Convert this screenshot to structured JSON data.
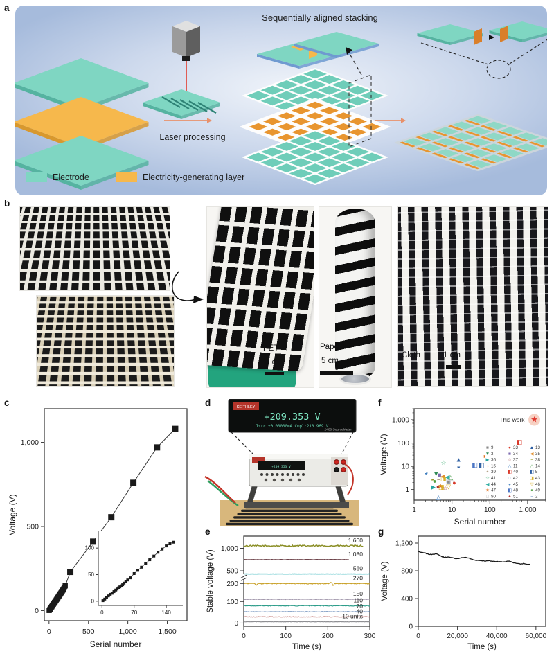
{
  "panels": {
    "a": "a",
    "b": "b",
    "c": "c",
    "d": "d",
    "e": "e",
    "f": "f",
    "g": "g"
  },
  "panel_a": {
    "stacking_title": "Sequentially aligned stacking",
    "process_label": "Laser processing",
    "legend": [
      {
        "label": "Electrode",
        "color": "#7fd6c2"
      },
      {
        "label": "Electricity-generating layer",
        "color": "#f6b84c"
      }
    ]
  },
  "panel_b": {
    "photos": [
      {
        "label": "PET",
        "scale_bar": "1 cm"
      },
      {
        "label": "Paper",
        "scale_bar": "5 cm"
      },
      {
        "label": "Cloth",
        "scale_bar": "1 cm"
      }
    ]
  },
  "panel_d": {
    "brand": "KEITHLEY",
    "display_line1": "+209.353 V",
    "display_line2": "Isrc:+0.00000mA  Cmpl:210.969 V",
    "model": "2400 SourceMeter"
  },
  "chart_data": [
    {
      "id": "c",
      "type": "scatter",
      "xlabel": "Serial number",
      "ylabel": "Voltage (V)",
      "xlim": [
        -60,
        1750
      ],
      "ylim": [
        -60,
        1200
      ],
      "xticks": [
        {
          "v": 0,
          "label": "0"
        },
        {
          "v": 500,
          "label": "500"
        },
        {
          "v": 1000,
          "label": "1,000"
        },
        {
          "v": 1500,
          "label": "1,500"
        }
      ],
      "yticks": [
        {
          "v": 0,
          "label": "0"
        },
        {
          "v": 500,
          "label": "500"
        },
        {
          "v": 1000,
          "label": "1,000"
        }
      ],
      "marker": "square",
      "color": "#1a1a1a",
      "points": [
        [
          2,
          1
        ],
        [
          8,
          5
        ],
        [
          14,
          9
        ],
        [
          20,
          14
        ],
        [
          27,
          18
        ],
        [
          34,
          23
        ],
        [
          41,
          28
        ],
        [
          48,
          33
        ],
        [
          55,
          38
        ],
        [
          62,
          43
        ],
        [
          69,
          48
        ],
        [
          76,
          52
        ],
        [
          83,
          57
        ],
        [
          90,
          62
        ],
        [
          97,
          67
        ],
        [
          104,
          72
        ],
        [
          111,
          77
        ],
        [
          118,
          82
        ],
        [
          125,
          87
        ],
        [
          132,
          91
        ],
        [
          139,
          96
        ],
        [
          146,
          101
        ],
        [
          153,
          106
        ],
        [
          160,
          111
        ],
        [
          167,
          116
        ],
        [
          174,
          121
        ],
        [
          181,
          126
        ],
        [
          188,
          131
        ],
        [
          196,
          139
        ],
        [
          205,
          147
        ],
        [
          270,
          230
        ],
        [
          560,
          410
        ],
        [
          790,
          555
        ],
        [
          1070,
          760
        ],
        [
          1370,
          970
        ],
        [
          1600,
          1080
        ]
      ],
      "inset": {
        "xlim": [
          -8,
          170
        ],
        "ylim": [
          -8,
          125
        ],
        "xticks": [
          {
            "v": 0,
            "label": "0"
          },
          {
            "v": 70,
            "label": "70"
          },
          {
            "v": 140,
            "label": "140"
          }
        ],
        "yticks": [
          {
            "v": 0,
            "label": "0"
          },
          {
            "v": 50,
            "label": "50"
          },
          {
            "v": 100,
            "label": "100"
          }
        ],
        "points": [
          [
            2,
            1
          ],
          [
            6,
            4
          ],
          [
            10,
            7
          ],
          [
            14,
            10
          ],
          [
            18,
            13
          ],
          [
            22,
            15
          ],
          [
            26,
            18
          ],
          [
            30,
            21
          ],
          [
            33,
            23
          ],
          [
            36,
            25
          ],
          [
            39,
            27
          ],
          [
            42,
            29
          ],
          [
            45,
            31
          ],
          [
            48,
            34
          ],
          [
            52,
            37
          ],
          [
            56,
            40
          ],
          [
            62,
            44
          ],
          [
            70,
            52
          ],
          [
            78,
            58
          ],
          [
            86,
            64
          ],
          [
            95,
            71
          ],
          [
            104,
            78
          ],
          [
            113,
            85
          ],
          [
            122,
            92
          ],
          [
            131,
            98
          ],
          [
            140,
            104
          ],
          [
            148,
            108
          ],
          [
            155,
            111
          ]
        ]
      }
    },
    {
      "id": "e",
      "type": "line",
      "xlabel": "Time (s)",
      "ylabel": "Stable voltage (V)",
      "xlim": [
        0,
        300
      ],
      "axis_break": true,
      "xticks": [
        {
          "v": 0,
          "label": "0"
        },
        {
          "v": 100,
          "label": "100"
        },
        {
          "v": 200,
          "label": "200"
        },
        {
          "v": 300,
          "label": "300"
        }
      ],
      "yticks": [
        {
          "v": 0,
          "label": "0"
        },
        {
          "v": 100,
          "label": "100"
        },
        {
          "v": 200,
          "label": "200"
        },
        {
          "v": 500,
          "label": "500"
        },
        {
          "v": 1000,
          "label": "1,000"
        }
      ],
      "series": [
        {
          "label": "1,600",
          "voltage": 1055,
          "color": "#8b8f27",
          "noise": 16,
          "width": 1.5,
          "end": 285
        },
        {
          "label": "1,080",
          "voltage": 750,
          "color": "#57262e",
          "noise": 3,
          "width": 1.0,
          "end": 250
        },
        {
          "label": "560",
          "voltage": 425,
          "color": "#38b6bd",
          "noise": 2,
          "width": 1.4,
          "end": 300
        },
        {
          "label": "270",
          "voltage": 200,
          "color": "#c9a22b",
          "noise": 3,
          "width": 1.2,
          "end": 300,
          "spikes": [
            [
              30,
              -10
            ],
            [
              207,
              26
            ],
            [
              213,
              -12
            ]
          ]
        },
        {
          "label": "150",
          "voltage": 112,
          "color": "#a49aae",
          "noise": 1.5,
          "width": 1.2,
          "end": 300
        },
        {
          "label": "110",
          "voltage": 80,
          "color": "#2e9d8a",
          "noise": 1.5,
          "width": 1.2,
          "end": 300
        },
        {
          "label": "70",
          "voltage": 52,
          "color": "#4a74ab",
          "noise": 1.0,
          "width": 1.2,
          "end": 300
        },
        {
          "label": "40",
          "voltage": 29,
          "color": "#b2544e",
          "noise": 1.0,
          "width": 1.2,
          "end": 300
        },
        {
          "label": "10 units",
          "voltage": 6,
          "color": "#8f8f93",
          "noise": 0.8,
          "width": 1.2,
          "end": 300
        }
      ]
    },
    {
      "id": "f",
      "type": "scatter",
      "scale": "log-log",
      "xlabel": "Serial number",
      "ylabel": "Voltage (V)",
      "xlim": [
        1,
        3000
      ],
      "ylim": [
        0.35,
        3000
      ],
      "xticks": [
        {
          "v": 1,
          "label": "1"
        },
        {
          "v": 10,
          "label": "10"
        },
        {
          "v": 100,
          "label": "100"
        },
        {
          "v": 1000,
          "label": "1,000"
        }
      ],
      "yticks": [
        {
          "v": 1,
          "label": "1"
        },
        {
          "v": 10,
          "label": "10"
        },
        {
          "v": 100,
          "label": "100"
        },
        {
          "v": 1000,
          "label": "1,000"
        }
      ],
      "highlight": {
        "label": "This work",
        "x": 1500,
        "y": 1000,
        "glyph": "★",
        "color": "#e0372e",
        "halo": "#f7d2c4"
      },
      "points": [
        {
          "x": 2.1,
          "y": 5.2,
          "g": "◕",
          "c": "#3d7dbe"
        },
        {
          "x": 3.8,
          "y": 4.7,
          "g": "▼",
          "c": "#2f8b57"
        },
        {
          "x": 4.7,
          "y": 4.2,
          "g": "■",
          "c": "#7d6bb0"
        },
        {
          "x": 5.7,
          "y": 3.7,
          "g": "◀",
          "c": "#e2902f"
        },
        {
          "x": 7.6,
          "y": 3.4,
          "g": "◀",
          "c": "#35b0a5"
        },
        {
          "x": 9.2,
          "y": 3.3,
          "g": "△",
          "c": "#59a35a"
        },
        {
          "x": 3.1,
          "y": 2.5,
          "g": "◓",
          "c": "#9a9a2e"
        },
        {
          "x": 3.5,
          "y": 2.3,
          "g": "●",
          "c": "#4f9e3f"
        },
        {
          "x": 4.4,
          "y": 2.6,
          "g": "◓",
          "c": "#b4a289"
        },
        {
          "x": 5.9,
          "y": 2.9,
          "g": "◨",
          "c": "#d8b02a"
        },
        {
          "x": 8.3,
          "y": 2.15,
          "g": "■",
          "c": "#8a8a8a"
        },
        {
          "x": 8.0,
          "y": 2.3,
          "g": "□",
          "c": "#9fb8d6"
        },
        {
          "x": 9.6,
          "y": 2.05,
          "g": "□",
          "c": "#a9a9a9"
        },
        {
          "x": 11.5,
          "y": 1.95,
          "g": "●",
          "c": "#d93a2b"
        },
        {
          "x": 3.2,
          "y": 1.25,
          "g": "▶",
          "c": "#27a5a0"
        },
        {
          "x": 4.3,
          "y": 1.3,
          "g": "●",
          "c": "#b03030"
        },
        {
          "x": 5.0,
          "y": 1.4,
          "g": "★",
          "c": "#e2711d"
        },
        {
          "x": 5.2,
          "y": 1.25,
          "g": "◨",
          "c": "#d8b02a"
        },
        {
          "x": 6.6,
          "y": 1.15,
          "g": "☆",
          "c": "#a04a4a"
        },
        {
          "x": 8.1,
          "y": 1.3,
          "g": "▽",
          "c": "#d8b02a"
        },
        {
          "x": 4.4,
          "y": 0.45,
          "g": "△",
          "c": "#3a7bbf"
        },
        {
          "x": 6.0,
          "y": 14,
          "g": "☆",
          "c": "#3fae74"
        },
        {
          "x": 15,
          "y": 19,
          "g": "▲",
          "c": "#2e5fa3"
        },
        {
          "x": 15,
          "y": 10,
          "g": "◒",
          "c": "#2e5fa3"
        },
        {
          "x": 40,
          "y": 11.5,
          "g": "◧",
          "c": "#4a74c4"
        },
        {
          "x": 60,
          "y": 11,
          "g": "◧",
          "c": "#2e5fa3"
        },
        {
          "x": 70,
          "y": 27,
          "g": "◑",
          "c": "#e2711d"
        },
        {
          "x": 600,
          "y": 110,
          "g": "◧",
          "c": "#d93a2b"
        }
      ],
      "legend": {
        "columns": 3,
        "entries": [
          {
            "ref": "9",
            "glyph": "■",
            "color": "#8a8a8a"
          },
          {
            "ref": "33",
            "glyph": "●",
            "color": "#d93a2b"
          },
          {
            "ref": "13",
            "glyph": "▲",
            "color": "#2e5fa3"
          },
          {
            "ref": "3",
            "glyph": "▼",
            "color": "#2f8b57"
          },
          {
            "ref": "34",
            "glyph": "■",
            "color": "#7d6bb0"
          },
          {
            "ref": "35",
            "glyph": "◀",
            "color": "#e2902f"
          },
          {
            "ref": "36",
            "glyph": "▶",
            "color": "#27a5a0"
          },
          {
            "ref": "37",
            "glyph": "☆",
            "color": "#a04a4a"
          },
          {
            "ref": "38",
            "glyph": "◓",
            "color": "#9a9a2e"
          },
          {
            "ref": "15",
            "glyph": "◑",
            "color": "#e2711d"
          },
          {
            "ref": "11",
            "glyph": "△",
            "color": "#3a7bbf"
          },
          {
            "ref": "14",
            "glyph": "△",
            "color": "#59a35a"
          },
          {
            "ref": "39",
            "glyph": "◓",
            "color": "#b4a289"
          },
          {
            "ref": "40",
            "glyph": "◧",
            "color": "#d93a2b"
          },
          {
            "ref": "5",
            "glyph": "◧",
            "color": "#2e5fa3"
          },
          {
            "ref": "41",
            "glyph": "☆",
            "color": "#3fae74"
          },
          {
            "ref": "42",
            "glyph": "□",
            "color": "#9fb8d6"
          },
          {
            "ref": "43",
            "glyph": "◨",
            "color": "#d8b02a"
          },
          {
            "ref": "44",
            "glyph": "◀",
            "color": "#35b0a5"
          },
          {
            "ref": "45",
            "glyph": "◕",
            "color": "#3d7dbe"
          },
          {
            "ref": "46",
            "glyph": "▽",
            "color": "#d8b02a"
          },
          {
            "ref": "47",
            "glyph": "★",
            "color": "#e2711d"
          },
          {
            "ref": "48",
            "glyph": "◧",
            "color": "#4a74c4"
          },
          {
            "ref": "49",
            "glyph": "●",
            "color": "#4f9e3f"
          },
          {
            "ref": "50",
            "glyph": "□",
            "color": "#a9a9a9"
          },
          {
            "ref": "51",
            "glyph": "●",
            "color": "#b03030"
          },
          {
            "ref": "2",
            "glyph": "◒",
            "color": "#2e5fa3"
          }
        ]
      }
    },
    {
      "id": "g",
      "type": "line",
      "xlabel": "Time (s)",
      "ylabel": "Voltage (V)",
      "xlim": [
        0,
        65000
      ],
      "ylim": [
        0,
        1300
      ],
      "xticks": [
        {
          "v": 0,
          "label": "0"
        },
        {
          "v": 20000,
          "label": "20,000"
        },
        {
          "v": 40000,
          "label": "40,000"
        },
        {
          "v": 60000,
          "label": "60,000"
        }
      ],
      "yticks": [
        {
          "v": 0,
          "label": "0"
        },
        {
          "v": 400,
          "label": "400"
        },
        {
          "v": 800,
          "label": "800"
        },
        {
          "v": 1200,
          "label": "1,200"
        }
      ],
      "color": "#161616",
      "points": [
        [
          0,
          1080
        ],
        [
          1500,
          1065
        ],
        [
          3000,
          1060
        ],
        [
          4500,
          1045
        ],
        [
          6000,
          1035
        ],
        [
          7500,
          1040
        ],
        [
          9000,
          1045
        ],
        [
          10500,
          1030
        ],
        [
          12000,
          1005
        ],
        [
          13500,
          995
        ],
        [
          15000,
          1000
        ],
        [
          16500,
          990
        ],
        [
          18000,
          985
        ],
        [
          19500,
          975
        ],
        [
          21000,
          980
        ],
        [
          22500,
          990
        ],
        [
          24000,
          995
        ],
        [
          25500,
          985
        ],
        [
          27000,
          970
        ],
        [
          28500,
          955
        ],
        [
          30000,
          950
        ],
        [
          31500,
          948
        ],
        [
          33000,
          945
        ],
        [
          34500,
          940
        ],
        [
          36000,
          945
        ],
        [
          37500,
          938
        ],
        [
          39000,
          935
        ],
        [
          40500,
          935
        ],
        [
          42000,
          930
        ],
        [
          43500,
          928
        ],
        [
          45000,
          935
        ],
        [
          46500,
          940
        ],
        [
          48000,
          920
        ],
        [
          49500,
          912
        ],
        [
          51000,
          905
        ],
        [
          52500,
          900
        ],
        [
          54000,
          905
        ],
        [
          55500,
          892
        ],
        [
          57000,
          890
        ]
      ]
    }
  ]
}
